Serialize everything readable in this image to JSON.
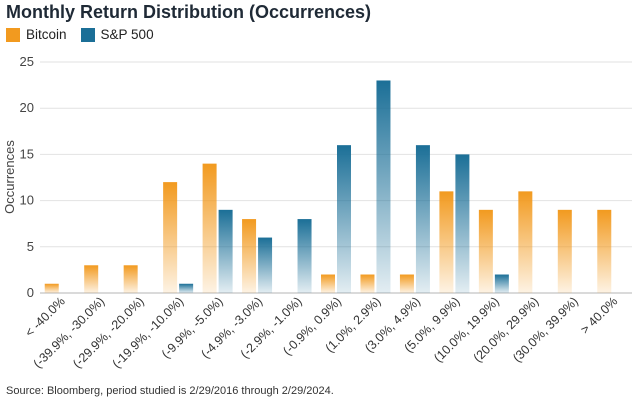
{
  "chart_data": {
    "type": "bar",
    "title": "Monthly Return Distribution (Occurrences)",
    "ylabel": "Occurrences",
    "xlabel": "",
    "ylim": [
      0,
      25
    ],
    "yticks": [
      0,
      5,
      10,
      15,
      20,
      25
    ],
    "grid": true,
    "legend_position": "top-left",
    "categories": [
      "< -40.0%",
      "(-39.9%, -30.0%)",
      "(-29.9%, -20.0%)",
      "(-19.9%, -10.0%)",
      "(-9.9%, -5.0%)",
      "(-4.9%, -3.0%)",
      "(-2.9%, -1.0%)",
      "(-0.9%, 0.9%)",
      "(1.0%, 2.9%)",
      "(3.0%, 4.9%)",
      "(5.0%, 9.9%)",
      "(10.0%, 19.9%)",
      "(20.0%, 29.9%)",
      "(30.0%, 39.9%)",
      "> 40.0%"
    ],
    "series": [
      {
        "name": "Bitcoin",
        "color": "#f29a1f",
        "values": [
          1,
          3,
          3,
          12,
          14,
          8,
          0,
          2,
          2,
          2,
          11,
          9,
          11,
          9,
          9
        ]
      },
      {
        "name": "S&P 500",
        "color": "#1b6f97",
        "values": [
          0,
          0,
          0,
          1,
          9,
          6,
          8,
          16,
          23,
          16,
          15,
          2,
          0,
          0,
          0
        ]
      }
    ]
  },
  "source": "Source: Bloomberg, period studied is 2/29/2016 through 2/29/2024."
}
